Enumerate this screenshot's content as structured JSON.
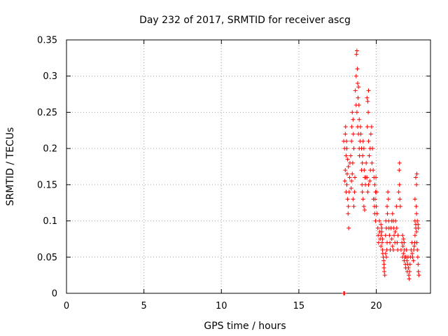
{
  "chart_data": {
    "type": "scatter",
    "title": "Day 232 of 2017, SRMTID for receiver ascg",
    "xlabel": "GPS time / hours",
    "ylabel": "SRMTID / TECUs",
    "xlim": [
      0,
      23.5
    ],
    "ylim": [
      0,
      0.35
    ],
    "xticks": [
      0,
      5,
      10,
      15,
      20
    ],
    "yticks": [
      0,
      0.05,
      0.1,
      0.15,
      0.2,
      0.25,
      0.3,
      0.35
    ],
    "xtick_labels": [
      "0",
      "5",
      "10",
      "15",
      "20"
    ],
    "ytick_labels": [
      "0",
      "0.05",
      "0.1",
      "0.15",
      "0.2",
      "0.25",
      "0.3",
      "0.35"
    ],
    "grid": true,
    "marker": "+",
    "color": "#ff0000",
    "series": [
      {
        "name": "SRMTID",
        "points": [
          [
            17.9,
            0.0
          ],
          [
            17.92,
            0.0
          ],
          [
            17.95,
            0.0
          ],
          [
            17.9,
            0.21
          ],
          [
            17.95,
            0.2
          ],
          [
            18.0,
            0.22
          ],
          [
            18.02,
            0.23
          ],
          [
            18.05,
            0.19
          ],
          [
            18.0,
            0.17
          ],
          [
            17.97,
            0.155
          ],
          [
            18.05,
            0.14
          ],
          [
            18.1,
            0.15
          ],
          [
            18.12,
            0.165
          ],
          [
            18.15,
            0.13
          ],
          [
            18.2,
            0.12
          ],
          [
            18.22,
            0.09
          ],
          [
            18.18,
            0.11
          ],
          [
            18.25,
            0.14
          ],
          [
            18.28,
            0.16
          ],
          [
            18.3,
            0.18
          ],
          [
            18.1,
            0.2
          ],
          [
            18.08,
            0.21
          ],
          [
            18.15,
            0.185
          ],
          [
            18.2,
            0.175
          ],
          [
            18.35,
            0.19
          ],
          [
            18.4,
            0.21
          ],
          [
            18.42,
            0.23
          ],
          [
            18.45,
            0.25
          ],
          [
            18.5,
            0.24
          ],
          [
            18.52,
            0.22
          ],
          [
            18.55,
            0.2
          ],
          [
            18.48,
            0.18
          ],
          [
            18.45,
            0.165
          ],
          [
            18.4,
            0.155
          ],
          [
            18.38,
            0.145
          ],
          [
            18.5,
            0.13
          ],
          [
            18.55,
            0.12
          ],
          [
            18.6,
            0.14
          ],
          [
            18.62,
            0.16
          ],
          [
            18.65,
            0.28
          ],
          [
            18.7,
            0.3
          ],
          [
            18.72,
            0.33
          ],
          [
            18.75,
            0.335
          ],
          [
            18.78,
            0.31
          ],
          [
            18.8,
            0.29
          ],
          [
            18.82,
            0.27
          ],
          [
            18.85,
            0.285
          ],
          [
            18.88,
            0.26
          ],
          [
            18.9,
            0.24
          ],
          [
            18.7,
            0.26
          ],
          [
            18.75,
            0.25
          ],
          [
            18.8,
            0.23
          ],
          [
            18.85,
            0.22
          ],
          [
            18.9,
            0.2
          ],
          [
            18.92,
            0.19
          ],
          [
            18.95,
            0.21
          ],
          [
            18.98,
            0.23
          ],
          [
            19.0,
            0.22
          ],
          [
            19.05,
            0.2
          ],
          [
            19.1,
            0.18
          ],
          [
            19.12,
            0.19
          ],
          [
            19.15,
            0.21
          ],
          [
            19.2,
            0.2
          ],
          [
            19.22,
            0.17
          ],
          [
            19.25,
            0.16
          ],
          [
            19.3,
            0.15
          ],
          [
            19.32,
            0.16
          ],
          [
            19.35,
            0.18
          ],
          [
            19.05,
            0.17
          ],
          [
            19.08,
            0.15
          ],
          [
            19.1,
            0.14
          ],
          [
            19.15,
            0.13
          ],
          [
            19.2,
            0.12
          ],
          [
            19.25,
            0.115
          ],
          [
            19.4,
            0.27
          ],
          [
            19.45,
            0.265
          ],
          [
            19.5,
            0.28
          ],
          [
            19.48,
            0.25
          ],
          [
            19.42,
            0.23
          ],
          [
            19.5,
            0.21
          ],
          [
            19.55,
            0.19
          ],
          [
            19.6,
            0.2
          ],
          [
            19.62,
            0.17
          ],
          [
            19.58,
            0.155
          ],
          [
            19.5,
            0.15
          ],
          [
            19.45,
            0.14
          ],
          [
            19.4,
            0.16
          ],
          [
            19.65,
            0.22
          ],
          [
            19.7,
            0.23
          ],
          [
            19.75,
            0.2
          ],
          [
            19.72,
            0.18
          ],
          [
            19.8,
            0.17
          ],
          [
            19.85,
            0.16
          ],
          [
            19.9,
            0.15
          ],
          [
            19.95,
            0.14
          ],
          [
            19.82,
            0.13
          ],
          [
            19.88,
            0.12
          ],
          [
            19.9,
            0.11
          ],
          [
            19.92,
            0.13
          ],
          [
            19.95,
            0.1
          ],
          [
            20.0,
            0.12
          ],
          [
            20.05,
            0.11
          ],
          [
            20.02,
            0.14
          ],
          [
            19.98,
            0.16
          ],
          [
            20.1,
            0.09
          ],
          [
            20.12,
            0.08
          ],
          [
            20.15,
            0.07
          ],
          [
            20.2,
            0.1
          ],
          [
            20.22,
            0.085
          ],
          [
            20.25,
            0.075
          ],
          [
            20.3,
            0.065
          ],
          [
            20.32,
            0.08
          ],
          [
            20.35,
            0.09
          ],
          [
            20.38,
            0.07
          ],
          [
            20.4,
            0.06
          ],
          [
            20.42,
            0.055
          ],
          [
            20.45,
            0.05
          ],
          [
            20.48,
            0.045
          ],
          [
            20.5,
            0.04
          ],
          [
            20.5,
            0.035
          ],
          [
            20.52,
            0.03
          ],
          [
            20.55,
            0.025
          ],
          [
            20.4,
            0.075
          ],
          [
            20.35,
            0.085
          ],
          [
            20.3,
            0.095
          ],
          [
            20.6,
            0.08
          ],
          [
            20.62,
            0.1
          ],
          [
            20.65,
            0.09
          ],
          [
            20.7,
            0.12
          ],
          [
            20.72,
            0.11
          ],
          [
            20.75,
            0.14
          ],
          [
            20.78,
            0.13
          ],
          [
            20.8,
            0.1
          ],
          [
            20.82,
            0.09
          ],
          [
            20.85,
            0.08
          ],
          [
            20.88,
            0.07
          ],
          [
            20.9,
            0.06
          ],
          [
            20.7,
            0.07
          ],
          [
            20.68,
            0.06
          ],
          [
            20.65,
            0.05
          ],
          [
            20.6,
            0.055
          ],
          [
            20.95,
            0.09
          ],
          [
            21.0,
            0.1
          ],
          [
            21.05,
            0.11
          ],
          [
            21.1,
            0.1
          ],
          [
            21.12,
            0.09
          ],
          [
            21.15,
            0.08
          ],
          [
            21.2,
            0.07
          ],
          [
            21.22,
            0.085
          ],
          [
            21.25,
            0.1
          ],
          [
            21.3,
            0.12
          ],
          [
            21.32,
            0.09
          ],
          [
            21.35,
            0.07
          ],
          [
            21.38,
            0.06
          ],
          [
            21.4,
            0.08
          ],
          [
            21.0,
            0.075
          ],
          [
            21.05,
            0.065
          ],
          [
            21.1,
            0.06
          ],
          [
            21.45,
            0.14
          ],
          [
            21.5,
            0.15
          ],
          [
            21.52,
            0.13
          ],
          [
            21.55,
            0.12
          ],
          [
            21.5,
            0.18
          ],
          [
            21.48,
            0.17
          ],
          [
            21.6,
            0.06
          ],
          [
            21.65,
            0.07
          ],
          [
            21.7,
            0.05
          ],
          [
            21.72,
            0.065
          ],
          [
            21.75,
            0.055
          ],
          [
            21.8,
            0.045
          ],
          [
            21.82,
            0.06
          ],
          [
            21.85,
            0.05
          ],
          [
            21.88,
            0.04
          ],
          [
            21.9,
            0.035
          ],
          [
            21.92,
            0.05
          ],
          [
            21.95,
            0.06
          ],
          [
            21.98,
            0.045
          ],
          [
            22.0,
            0.03
          ],
          [
            22.02,
            0.04
          ],
          [
            22.05,
            0.05
          ],
          [
            22.08,
            0.035
          ],
          [
            22.1,
            0.025
          ],
          [
            22.12,
            0.02
          ],
          [
            22.15,
            0.03
          ],
          [
            22.18,
            0.04
          ],
          [
            22.2,
            0.05
          ],
          [
            21.7,
            0.08
          ],
          [
            21.75,
            0.075
          ],
          [
            21.8,
            0.07
          ],
          [
            22.25,
            0.06
          ],
          [
            22.3,
            0.07
          ],
          [
            22.32,
            0.055
          ],
          [
            22.35,
            0.05
          ],
          [
            22.4,
            0.045
          ],
          [
            22.42,
            0.06
          ],
          [
            22.45,
            0.065
          ],
          [
            22.48,
            0.07
          ],
          [
            22.5,
            0.08
          ],
          [
            22.55,
            0.09
          ],
          [
            22.6,
            0.085
          ],
          [
            22.62,
            0.07
          ],
          [
            22.65,
            0.06
          ],
          [
            22.68,
            0.05
          ],
          [
            22.7,
            0.04
          ],
          [
            22.72,
            0.03
          ],
          [
            22.75,
            0.025
          ],
          [
            22.55,
            0.16
          ],
          [
            22.6,
            0.15
          ],
          [
            22.62,
            0.165
          ],
          [
            22.58,
            0.12
          ],
          [
            22.5,
            0.13
          ],
          [
            22.6,
            0.11
          ],
          [
            22.65,
            0.1
          ],
          [
            22.7,
            0.095
          ],
          [
            22.72,
            0.09
          ],
          [
            22.5,
            0.1
          ],
          [
            22.55,
            0.095
          ]
        ]
      }
    ]
  }
}
